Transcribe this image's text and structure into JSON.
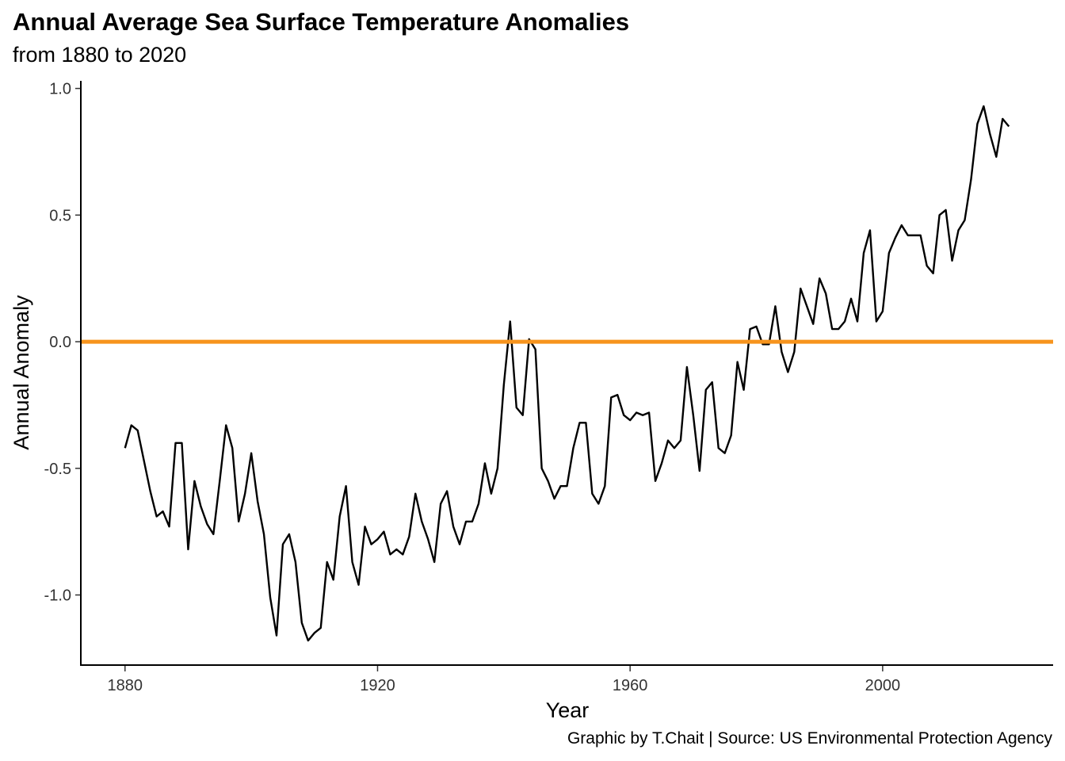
{
  "chart_data": {
    "type": "line",
    "title": "Annual Average Sea Surface Temperature Anomalies",
    "subtitle": "from 1880 to 2020",
    "caption": "Graphic by T.Chait | Source: US Environmental Protection Agency",
    "xlabel": "Year",
    "ylabel": "Annual Anomaly",
    "x_ticks": [
      1880,
      1920,
      1960,
      2000
    ],
    "y_ticks": [
      -1.0,
      -0.5,
      0.0,
      0.5,
      1.0
    ],
    "y_tick_labels": [
      "-1.0",
      "-0.5",
      "0.0",
      "0.5",
      "1.0"
    ],
    "xlim": [
      1873,
      2027
    ],
    "ylim": [
      -1.28,
      1.03
    ],
    "grid": false,
    "reference_line": {
      "y": 0.0,
      "color": "#F7941D"
    },
    "series": [
      {
        "color": "#000000",
        "x": [
          1880,
          1881,
          1882,
          1883,
          1884,
          1885,
          1886,
          1887,
          1888,
          1889,
          1890,
          1891,
          1892,
          1893,
          1894,
          1895,
          1896,
          1897,
          1898,
          1899,
          1900,
          1901,
          1902,
          1903,
          1904,
          1905,
          1906,
          1907,
          1908,
          1909,
          1910,
          1911,
          1912,
          1913,
          1914,
          1915,
          1916,
          1917,
          1918,
          1919,
          1920,
          1921,
          1922,
          1923,
          1924,
          1925,
          1926,
          1927,
          1928,
          1929,
          1930,
          1931,
          1932,
          1933,
          1934,
          1935,
          1936,
          1937,
          1938,
          1939,
          1940,
          1941,
          1942,
          1943,
          1944,
          1945,
          1946,
          1947,
          1948,
          1949,
          1950,
          1951,
          1952,
          1953,
          1954,
          1955,
          1956,
          1957,
          1958,
          1959,
          1960,
          1961,
          1962,
          1963,
          1964,
          1965,
          1966,
          1967,
          1968,
          1969,
          1970,
          1971,
          1972,
          1973,
          1974,
          1975,
          1976,
          1977,
          1978,
          1979,
          1980,
          1981,
          1982,
          1983,
          1984,
          1985,
          1986,
          1987,
          1988,
          1989,
          1990,
          1991,
          1992,
          1993,
          1994,
          1995,
          1996,
          1997,
          1998,
          1999,
          2000,
          2001,
          2002,
          2003,
          2004,
          2005,
          2006,
          2007,
          2008,
          2009,
          2010,
          2011,
          2012,
          2013,
          2014,
          2015,
          2016,
          2017,
          2018,
          2019,
          2020
        ],
        "y": [
          -0.42,
          -0.33,
          -0.35,
          -0.47,
          -0.59,
          -0.69,
          -0.67,
          -0.73,
          -0.4,
          -0.4,
          -0.82,
          -0.55,
          -0.65,
          -0.72,
          -0.76,
          -0.55,
          -0.33,
          -0.42,
          -0.71,
          -0.6,
          -0.44,
          -0.63,
          -0.76,
          -1.01,
          -1.16,
          -0.8,
          -0.76,
          -0.87,
          -1.11,
          -1.18,
          -1.15,
          -1.13,
          -0.87,
          -0.94,
          -0.69,
          -0.57,
          -0.87,
          -0.96,
          -0.73,
          -0.8,
          -0.78,
          -0.75,
          -0.84,
          -0.82,
          -0.84,
          -0.77,
          -0.6,
          -0.71,
          -0.78,
          -0.87,
          -0.64,
          -0.59,
          -0.73,
          -0.8,
          -0.71,
          -0.71,
          -0.64,
          -0.48,
          -0.6,
          -0.5,
          -0.17,
          0.08,
          -0.26,
          -0.29,
          0.01,
          -0.03,
          -0.5,
          -0.55,
          -0.62,
          -0.57,
          -0.57,
          -0.42,
          -0.32,
          -0.32,
          -0.6,
          -0.64,
          -0.57,
          -0.22,
          -0.21,
          -0.29,
          -0.31,
          -0.28,
          -0.29,
          -0.28,
          -0.55,
          -0.48,
          -0.39,
          -0.42,
          -0.39,
          -0.1,
          -0.29,
          -0.51,
          -0.19,
          -0.16,
          -0.42,
          -0.44,
          -0.37,
          -0.08,
          -0.19,
          0.05,
          0.06,
          -0.01,
          -0.01,
          0.14,
          -0.04,
          -0.12,
          -0.04,
          0.21,
          0.14,
          0.07,
          0.25,
          0.19,
          0.05,
          0.05,
          0.08,
          0.17,
          0.08,
          0.35,
          0.44,
          0.08,
          0.12,
          0.35,
          0.41,
          0.46,
          0.42,
          0.42,
          0.42,
          0.3,
          0.27,
          0.5,
          0.52,
          0.32,
          0.44,
          0.48,
          0.64,
          0.86,
          0.93,
          0.82,
          0.73,
          0.88,
          0.85
        ]
      }
    ]
  }
}
